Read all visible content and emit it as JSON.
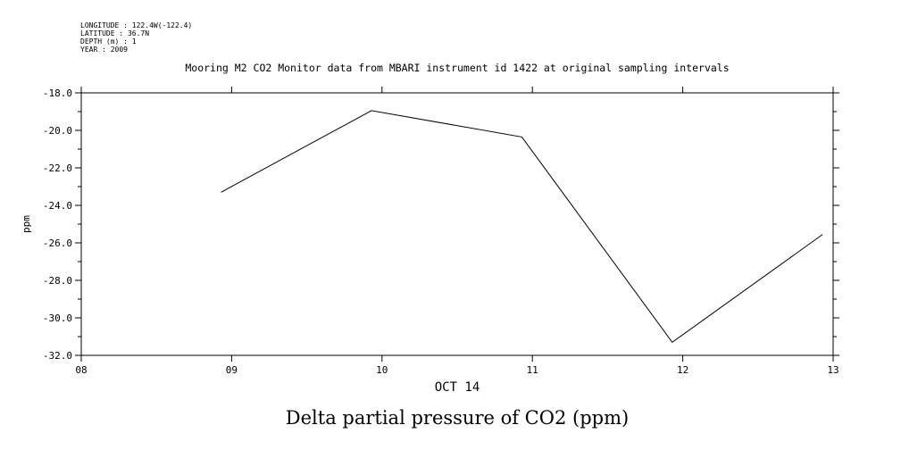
{
  "meta": {
    "longitude": "LONGITUDE : 122.4W(-122.4)",
    "latitude": "LATITUDE : 36.7N",
    "depth": "DEPTH (m) : 1",
    "year": "YEAR : 2009"
  },
  "footer_title": "Delta partial pressure of CO2 (ppm)",
  "chart_data": {
    "type": "line",
    "title": "Mooring M2 CO2 Monitor data from MBARI instrument id 1422 at original sampling intervals",
    "xlabel": "OCT 14",
    "ylabel": "ppm",
    "x_tick_labels": [
      "08",
      "09",
      "10",
      "11",
      "12",
      "13"
    ],
    "xlim": [
      8,
      13
    ],
    "ylim": [
      -32,
      -18
    ],
    "y_tick_labels": [
      "-18.0",
      "-20.0",
      "-22.0",
      "-24.0",
      "-26.0",
      "-28.0",
      "-30.0",
      "-32.0"
    ],
    "y_tick_values": [
      -18,
      -20,
      -22,
      -24,
      -26,
      -28,
      -30,
      -32
    ],
    "y_minor_step": 1,
    "grid": false,
    "color": "#000000",
    "series": [
      {
        "x": [
          8.93,
          9.93,
          10.93,
          11.93,
          12.93
        ],
        "y": [
          -23.3,
          -18.95,
          -20.35,
          -31.3,
          -25.55
        ]
      }
    ]
  }
}
